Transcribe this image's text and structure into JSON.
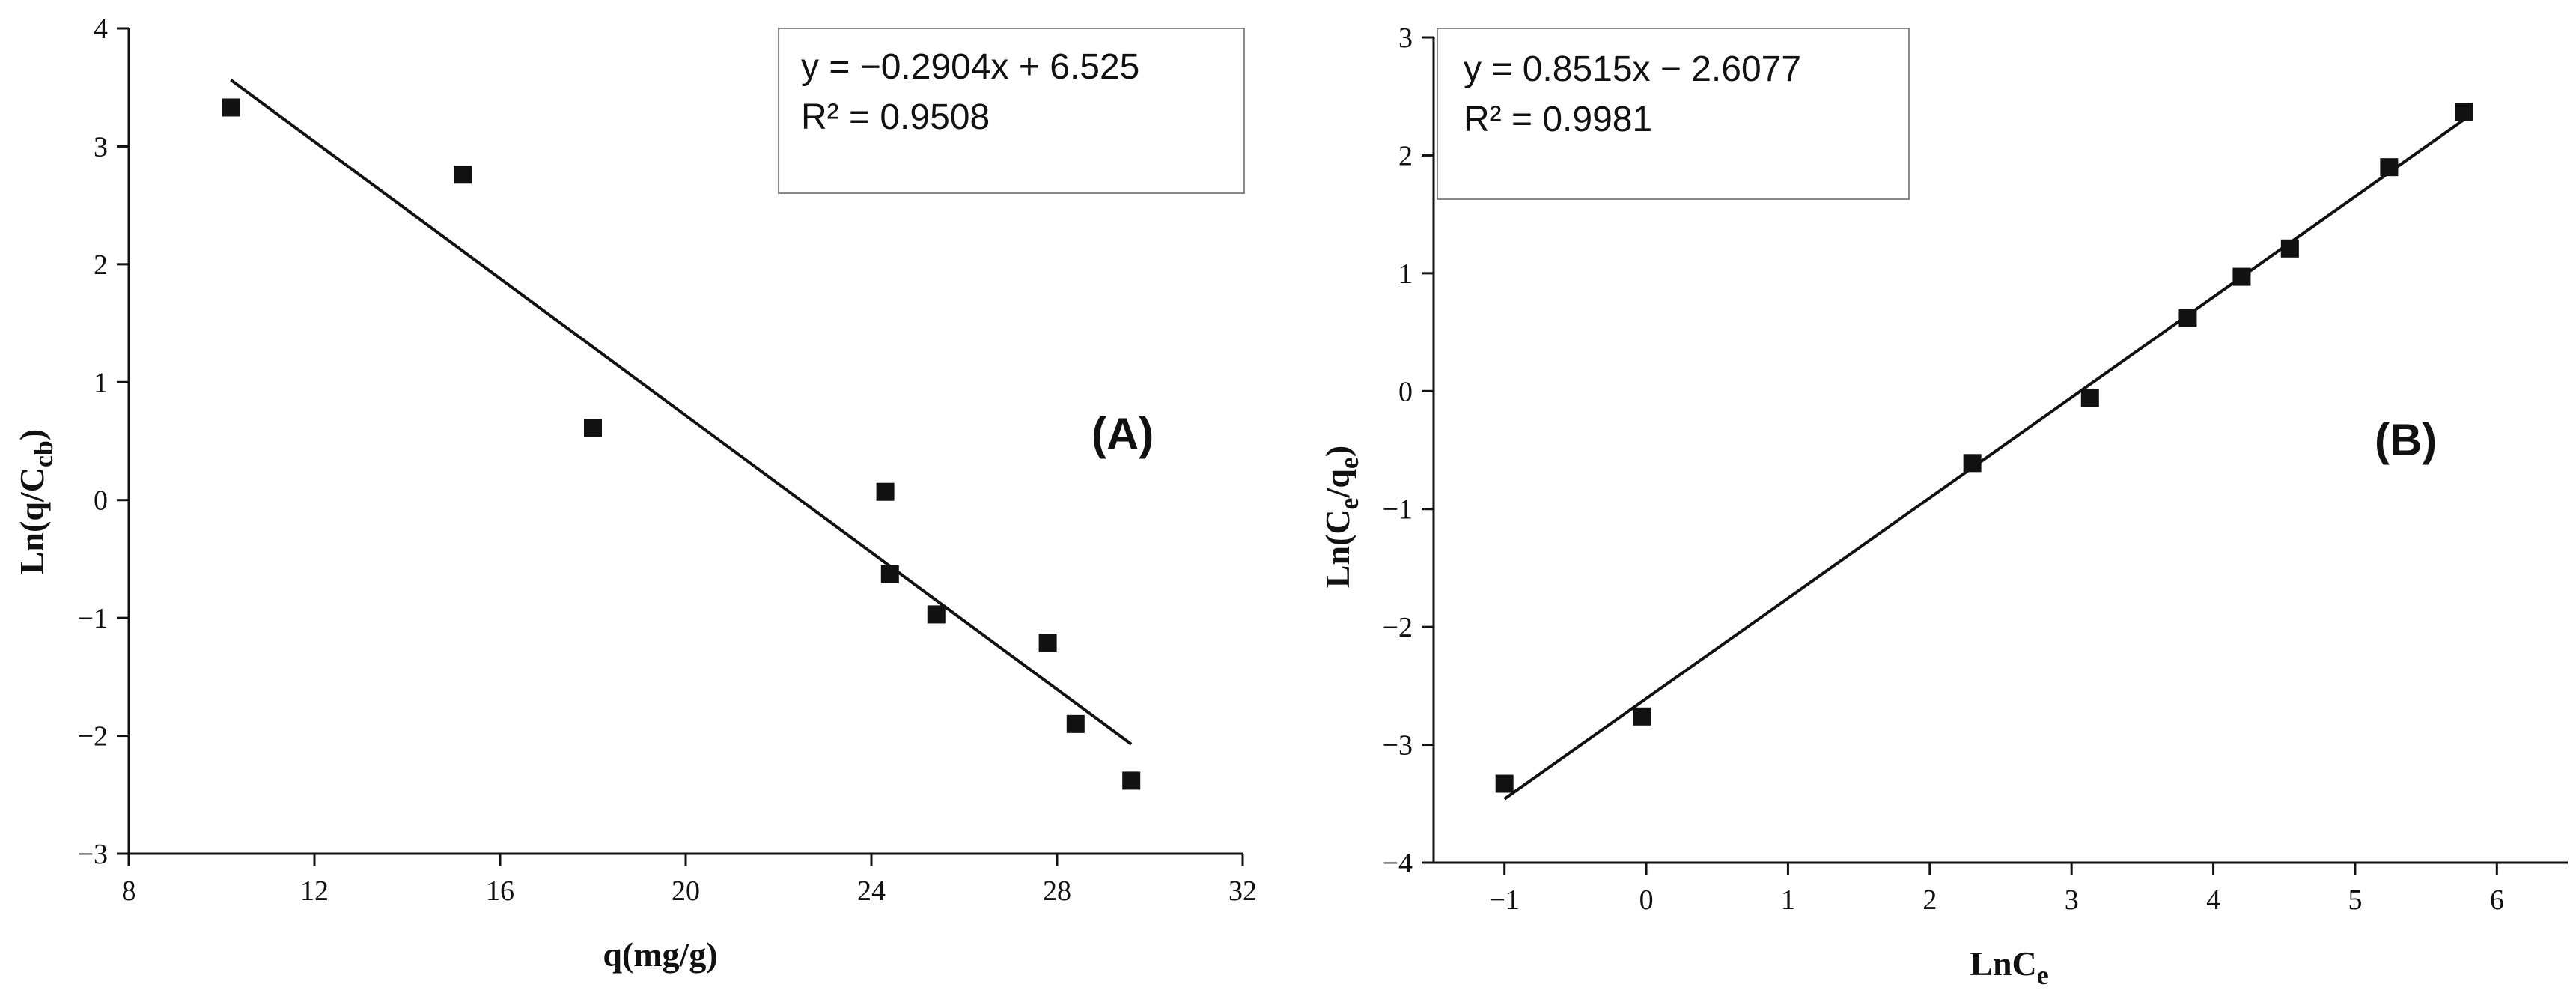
{
  "chart_data": [
    {
      "id": "A",
      "type": "scatter",
      "panel_label": "(A)",
      "xlabel": "q(mg/g)",
      "ylabel_main": "Ln(q/C",
      "ylabel_sub": "cb",
      "ylabel_close": ")",
      "xlim": [
        8,
        32
      ],
      "ylim": [
        -3,
        4
      ],
      "x_ticks": [
        8,
        12,
        16,
        20,
        24,
        28,
        32
      ],
      "y_ticks": [
        -3,
        -2,
        -1,
        0,
        1,
        2,
        3,
        4
      ],
      "x_tick_labels": [
        "8",
        "12",
        "16",
        "20",
        "24",
        "28",
        "32"
      ],
      "y_tick_labels": [
        "−3",
        "−2",
        "−1",
        "0",
        "1",
        "2",
        "3",
        "4"
      ],
      "series": [
        {
          "name": "data",
          "x": [
            10.2,
            15.2,
            18.0,
            24.3,
            24.4,
            25.4,
            27.8,
            28.4,
            29.6
          ],
          "y": [
            3.33,
            2.76,
            0.61,
            0.07,
            -0.63,
            -0.97,
            -1.21,
            -1.9,
            -2.38
          ]
        }
      ],
      "fit": {
        "slope": -0.2904,
        "intercept": 6.525,
        "x_range": [
          10.2,
          29.6
        ]
      },
      "equation": "y = −0.2904x + 6.525",
      "r_squared": "R² = 0.9508"
    },
    {
      "id": "B",
      "type": "scatter",
      "panel_label": "(B)",
      "xlabel_main": "LnC",
      "xlabel_sub": "e",
      "ylabel_main": "Ln(C",
      "ylabel_sub1": "e",
      "ylabel_mid": "/q",
      "ylabel_sub2": "e",
      "ylabel_close": ")",
      "xlim": [
        -1.5,
        6.5
      ],
      "ylim": [
        -4,
        3
      ],
      "x_ticks": [
        -1,
        0,
        1,
        2,
        3,
        4,
        5,
        6
      ],
      "y_ticks": [
        -4,
        -3,
        -2,
        -1,
        0,
        1,
        2,
        3
      ],
      "x_tick_labels": [
        "−1",
        "0",
        "1",
        "2",
        "3",
        "4",
        "5",
        "6"
      ],
      "y_tick_labels": [
        "−4",
        "−3",
        "−2",
        "−1",
        "0",
        "1",
        "2",
        "3"
      ],
      "series": [
        {
          "name": "data",
          "x": [
            -1.0,
            -0.03,
            2.3,
            3.13,
            3.82,
            4.2,
            4.54,
            5.24,
            5.77
          ],
          "y": [
            -3.33,
            -2.76,
            -0.61,
            -0.06,
            0.62,
            0.97,
            1.21,
            1.9,
            2.37
          ]
        }
      ],
      "fit": {
        "slope": 0.8515,
        "intercept": -2.6077,
        "x_range": [
          -1.0,
          5.77
        ]
      },
      "equation": "y = 0.8515x − 2.6077",
      "r_squared": "R² = 0.9981"
    }
  ]
}
